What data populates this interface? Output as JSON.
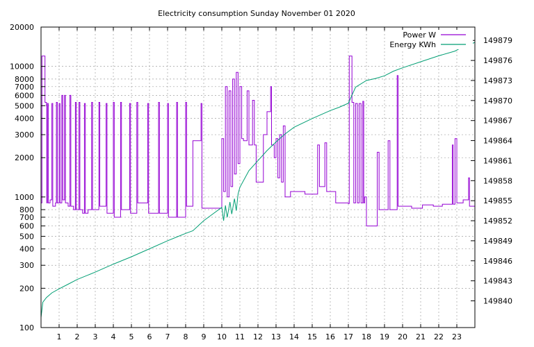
{
  "chart_data": {
    "type": "line",
    "title": "Electricity consumption Sunday November 01 2020",
    "xlabel": "",
    "ylabel": "",
    "y2label": "",
    "grid": true,
    "legend_position": "top-right",
    "x_range": [
      0,
      24
    ],
    "y_range": [
      100,
      20000
    ],
    "y_scale": "log",
    "y2_range": [
      149836,
      149881
    ],
    "x_ticks": [
      "1",
      "2",
      "3",
      "4",
      "5",
      "6",
      "7",
      "8",
      "9",
      "10",
      "11",
      "12",
      "13",
      "14",
      "15",
      "16",
      "17",
      "18",
      "19",
      "20",
      "21",
      "22",
      "23"
    ],
    "y_ticks": [
      100,
      200,
      300,
      400,
      500,
      600,
      700,
      800,
      1000,
      2000,
      3000,
      4000,
      5000,
      6000,
      7000,
      8000,
      10000,
      20000
    ],
    "y_tick_labels": [
      "100",
      "200",
      "300",
      "400",
      "500",
      "600",
      "700",
      "800",
      "1000",
      "2000",
      "3000",
      "4000",
      "5000",
      "6000",
      "7000",
      "8000",
      "10000",
      "20000"
    ],
    "y2_ticks": [
      149840,
      149843,
      149846,
      149849,
      149852,
      149855,
      149858,
      149861,
      149864,
      149867,
      149870,
      149873,
      149876,
      149879
    ],
    "series": [
      {
        "name": "Power W",
        "color": "#9400d3",
        "axis": "y1",
        "points": [
          [
            0.0,
            900
          ],
          [
            0.05,
            12000
          ],
          [
            0.2,
            12000
          ],
          [
            0.22,
            5300
          ],
          [
            0.3,
            5000
          ],
          [
            0.32,
            900
          ],
          [
            0.35,
            5200
          ],
          [
            0.4,
            900
          ],
          [
            0.5,
            950
          ],
          [
            0.6,
            5200
          ],
          [
            0.65,
            850
          ],
          [
            0.8,
            900
          ],
          [
            0.85,
            5300
          ],
          [
            0.9,
            900
          ],
          [
            1.0,
            5200
          ],
          [
            1.05,
            900
          ],
          [
            1.15,
            6000
          ],
          [
            1.2,
            950
          ],
          [
            1.3,
            6000
          ],
          [
            1.35,
            900
          ],
          [
            1.5,
            850
          ],
          [
            1.6,
            6000
          ],
          [
            1.65,
            850
          ],
          [
            1.8,
            800
          ],
          [
            1.9,
            5300
          ],
          [
            1.95,
            800
          ],
          [
            2.1,
            5300
          ],
          [
            2.15,
            800
          ],
          [
            2.3,
            750
          ],
          [
            2.4,
            5200
          ],
          [
            2.45,
            750
          ],
          [
            2.6,
            800
          ],
          [
            2.8,
            5300
          ],
          [
            2.85,
            800
          ],
          [
            3.0,
            800
          ],
          [
            3.2,
            5300
          ],
          [
            3.25,
            850
          ],
          [
            3.5,
            850
          ],
          [
            3.6,
            5200
          ],
          [
            3.65,
            750
          ],
          [
            3.9,
            750
          ],
          [
            4.0,
            5300
          ],
          [
            4.05,
            700
          ],
          [
            4.3,
            700
          ],
          [
            4.4,
            5300
          ],
          [
            4.45,
            800
          ],
          [
            4.7,
            800
          ],
          [
            4.9,
            5200
          ],
          [
            4.95,
            750
          ],
          [
            5.1,
            750
          ],
          [
            5.3,
            5300
          ],
          [
            5.35,
            900
          ],
          [
            5.6,
            900
          ],
          [
            5.9,
            5200
          ],
          [
            5.95,
            750
          ],
          [
            6.2,
            750
          ],
          [
            6.5,
            5300
          ],
          [
            6.55,
            750
          ],
          [
            6.8,
            750
          ],
          [
            7.0,
            5200
          ],
          [
            7.05,
            700
          ],
          [
            7.2,
            700
          ],
          [
            7.5,
            5300
          ],
          [
            7.55,
            700
          ],
          [
            7.8,
            700
          ],
          [
            8.0,
            5300
          ],
          [
            8.05,
            850
          ],
          [
            8.2,
            850
          ],
          [
            8.4,
            2700
          ],
          [
            8.8,
            2700
          ],
          [
            8.85,
            5200
          ],
          [
            8.9,
            820
          ],
          [
            9.5,
            820
          ],
          [
            9.9,
            820
          ],
          [
            10.0,
            2800
          ],
          [
            10.1,
            1100
          ],
          [
            10.2,
            7000
          ],
          [
            10.3,
            1000
          ],
          [
            10.4,
            6500
          ],
          [
            10.5,
            1200
          ],
          [
            10.6,
            8000
          ],
          [
            10.7,
            1500
          ],
          [
            10.8,
            9000
          ],
          [
            10.9,
            1800
          ],
          [
            11.0,
            7000
          ],
          [
            11.1,
            2800
          ],
          [
            11.2,
            2700
          ],
          [
            11.4,
            6500
          ],
          [
            11.5,
            2500
          ],
          [
            11.7,
            5500
          ],
          [
            11.8,
            2500
          ],
          [
            11.9,
            1300
          ],
          [
            12.2,
            1300
          ],
          [
            12.3,
            3000
          ],
          [
            12.5,
            4500
          ],
          [
            12.7,
            7000
          ],
          [
            12.75,
            2500
          ],
          [
            12.9,
            2000
          ],
          [
            13.0,
            2800
          ],
          [
            13.1,
            1400
          ],
          [
            13.2,
            3000
          ],
          [
            13.3,
            1300
          ],
          [
            13.4,
            3500
          ],
          [
            13.5,
            1000
          ],
          [
            13.7,
            1000
          ],
          [
            13.8,
            1100
          ],
          [
            14.5,
            1100
          ],
          [
            14.6,
            1050
          ],
          [
            15.2,
            1050
          ],
          [
            15.3,
            2500
          ],
          [
            15.4,
            1200
          ],
          [
            15.6,
            1200
          ],
          [
            15.7,
            2600
          ],
          [
            15.8,
            1100
          ],
          [
            16.2,
            1100
          ],
          [
            16.3,
            900
          ],
          [
            17.0,
            890
          ],
          [
            17.05,
            12000
          ],
          [
            17.15,
            12000
          ],
          [
            17.2,
            5300
          ],
          [
            17.3,
            900
          ],
          [
            17.4,
            5200
          ],
          [
            17.5,
            900
          ],
          [
            17.6,
            5200
          ],
          [
            17.7,
            900
          ],
          [
            17.8,
            5400
          ],
          [
            17.85,
            900
          ],
          [
            17.9,
            1000
          ],
          [
            18.0,
            600
          ],
          [
            18.5,
            600
          ],
          [
            18.6,
            2200
          ],
          [
            18.7,
            800
          ],
          [
            19.0,
            800
          ],
          [
            19.2,
            2700
          ],
          [
            19.3,
            800
          ],
          [
            19.6,
            800
          ],
          [
            19.7,
            8500
          ],
          [
            19.75,
            850
          ],
          [
            20.4,
            850
          ],
          [
            20.5,
            820
          ],
          [
            21.0,
            820
          ],
          [
            21.1,
            870
          ],
          [
            21.6,
            870
          ],
          [
            21.7,
            850
          ],
          [
            22.1,
            850
          ],
          [
            22.2,
            880
          ],
          [
            22.7,
            880
          ],
          [
            22.75,
            2500
          ],
          [
            22.8,
            880
          ],
          [
            22.9,
            2800
          ],
          [
            23.0,
            900
          ],
          [
            23.3,
            900
          ],
          [
            23.35,
            950
          ],
          [
            23.6,
            950
          ],
          [
            23.65,
            1400
          ],
          [
            23.7,
            850
          ],
          [
            24.0,
            850
          ]
        ]
      },
      {
        "name": "Energy KWh",
        "color": "#009e73",
        "axis": "y2",
        "points": [
          [
            0.0,
            149837.5
          ],
          [
            0.1,
            149839.8
          ],
          [
            0.3,
            149840.5
          ],
          [
            0.6,
            149841.2
          ],
          [
            1.0,
            149841.8
          ],
          [
            1.5,
            149842.5
          ],
          [
            2.0,
            149843.2
          ],
          [
            3.0,
            149844.3
          ],
          [
            4.0,
            149845.5
          ],
          [
            5.0,
            149846.6
          ],
          [
            6.0,
            149847.8
          ],
          [
            7.0,
            149849.0
          ],
          [
            8.0,
            149850.1
          ],
          [
            8.4,
            149850.5
          ],
          [
            9.0,
            149852.0
          ],
          [
            9.5,
            149853.0
          ],
          [
            10.0,
            149854.0
          ],
          [
            10.1,
            149852.0
          ],
          [
            10.2,
            149854.3
          ],
          [
            10.3,
            149852.5
          ],
          [
            10.45,
            149854.8
          ],
          [
            10.55,
            149853.0
          ],
          [
            10.7,
            149855.3
          ],
          [
            10.8,
            149853.5
          ],
          [
            10.9,
            149856.0
          ],
          [
            11.0,
            149857.0
          ],
          [
            11.5,
            149859.5
          ],
          [
            12.0,
            149861.0
          ],
          [
            12.5,
            149862.5
          ],
          [
            13.0,
            149863.8
          ],
          [
            13.5,
            149865.0
          ],
          [
            14.0,
            149866.0
          ],
          [
            15.0,
            149867.3
          ],
          [
            16.0,
            149868.5
          ],
          [
            16.5,
            149869.0
          ],
          [
            17.0,
            149869.6
          ],
          [
            17.4,
            149872.0
          ],
          [
            18.0,
            149873.0
          ],
          [
            18.5,
            149873.3
          ],
          [
            19.0,
            149873.7
          ],
          [
            19.5,
            149874.4
          ],
          [
            20.0,
            149874.9
          ],
          [
            21.0,
            149875.8
          ],
          [
            22.0,
            149876.7
          ],
          [
            22.9,
            149877.4
          ],
          [
            23.3,
            149878.0
          ],
          [
            24.0,
            149878.7
          ]
        ]
      }
    ]
  }
}
